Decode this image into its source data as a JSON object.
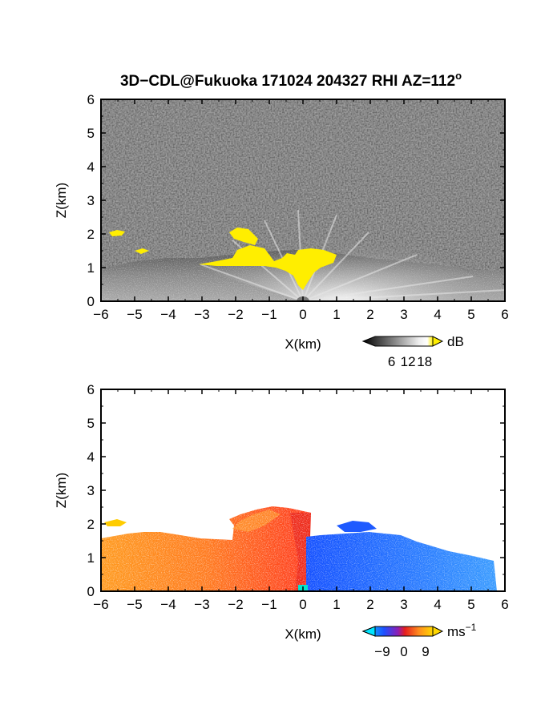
{
  "title": "3D−CDL@Fukuoka 171024 204327 RHI AZ=112",
  "title_sup": "o",
  "chart_data": [
    {
      "type": "heatmap",
      "variable": "SNR",
      "xlabel": "X(km)",
      "ylabel": "Z(km)",
      "xlim": [
        -6,
        6
      ],
      "ylim": [
        0,
        6
      ],
      "xticks": [
        -6,
        -5,
        -4,
        -3,
        -2,
        -1,
        0,
        1,
        2,
        3,
        4,
        5,
        6
      ],
      "yticks": [
        0,
        1,
        2,
        3,
        4,
        5,
        6
      ],
      "colorbar": {
        "unit": "dB",
        "ticks": [
          6,
          12,
          18
        ],
        "range": [
          0,
          21
        ],
        "colors": [
          "#000000",
          "#ffffff",
          "#ffee00"
        ]
      },
      "features": [
        {
          "name": "saturated-cloud-echo",
          "x": [
            -2.5,
            1.0
          ],
          "z": [
            0.4,
            1.6
          ],
          "color": "#ffee00"
        },
        {
          "name": "elevated-echo",
          "x": [
            -2.2,
            -1.2
          ],
          "z": [
            1.6,
            2.2
          ],
          "color": "#ffee00"
        },
        {
          "name": "left-echo",
          "x": [
            -5.8,
            -5.4
          ],
          "z": [
            1.9,
            2.1
          ],
          "color": "#ffee00"
        }
      ]
    },
    {
      "type": "heatmap",
      "variable": "radial-velocity",
      "xlabel": "X(km)",
      "ylabel": "Z(km)",
      "xlim": [
        -6,
        6
      ],
      "ylim": [
        0,
        6
      ],
      "xticks": [
        -6,
        -5,
        -4,
        -3,
        -2,
        -1,
        0,
        1,
        2,
        3,
        4,
        5,
        6
      ],
      "yticks": [
        0,
        1,
        2,
        3,
        4,
        5,
        6
      ],
      "colorbar": {
        "unit": "ms",
        "unit_sup": "−1",
        "ticks": [
          "−9",
          "0",
          "9"
        ],
        "range": [
          -12,
          12
        ],
        "colors": [
          "#00e5ff",
          "#1e50ff",
          "#8c1eb4",
          "#e61e1e",
          "#ff8c1e",
          "#ffd700"
        ]
      },
      "features": [
        {
          "name": "receding-flow",
          "x": [
            -6.0,
            0.2
          ],
          "z": [
            0.0,
            2.5
          ],
          "velocity": 6
        },
        {
          "name": "approaching-flow",
          "x": [
            0.2,
            5.8
          ],
          "z": [
            0.0,
            1.6
          ],
          "velocity": -7
        }
      ]
    }
  ]
}
